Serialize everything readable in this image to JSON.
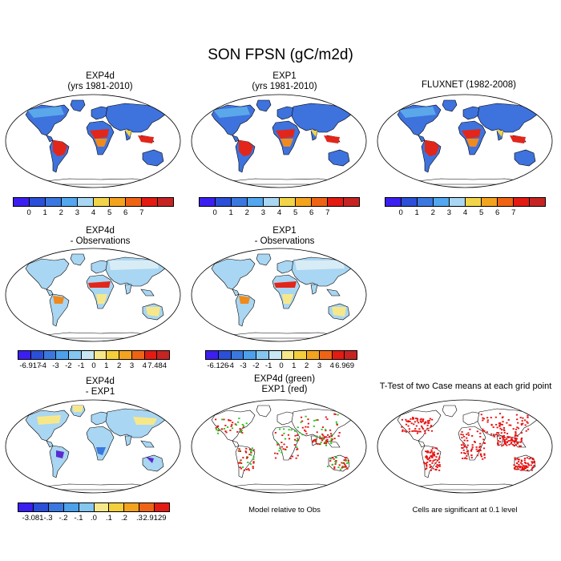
{
  "figure": {
    "title": "SON FPSN (gC/m2d)"
  },
  "panels": {
    "p1": {
      "title_line1": "EXP4d",
      "title_line2": "(yrs 1981-2010)"
    },
    "p2": {
      "title_line1": "EXP1",
      "title_line2": "(yrs 1981-2010)"
    },
    "p3": {
      "title_line1": "FLUXNET (1982-2008)"
    },
    "p4": {
      "title_line1": "EXP4d",
      "title_line2": "- Observations"
    },
    "p5": {
      "title_line1": "EXP1",
      "title_line2": "- Observations"
    },
    "p7": {
      "title_line1": "EXP4d",
      "title_line2": "- EXP1"
    },
    "p8": {
      "title_line1": "EXP4d (green)",
      "title_line2": "EXP1 (red)",
      "note": "Model relative to Obs"
    },
    "p9": {
      "title_line1": "T-Test of two Case means at each grid point",
      "note": "Cells are significant at 0.1 level"
    }
  },
  "colorbars": {
    "abs": {
      "colors": [
        "#3b1ff0",
        "#2b4fd8",
        "#3a78e0",
        "#52a7ee",
        "#a9d6f2",
        "#f2d44a",
        "#f4a31f",
        "#ef6414",
        "#e31b12",
        "#c62422"
      ],
      "labels": [
        "0",
        "1",
        "2",
        "3",
        "4",
        "5",
        "6",
        "7"
      ]
    },
    "diff4": {
      "colors": [
        "#3b1ff0",
        "#2b4fd8",
        "#3a78e0",
        "#4da0ec",
        "#84c6f0",
        "#c9e6f3",
        "#f6e88a",
        "#f4cf3c",
        "#f4a31f",
        "#ef6414",
        "#e31b12",
        "#c62422"
      ],
      "labels": [
        "-6.917",
        "-4",
        "-3",
        "-2",
        "-1",
        "0",
        "1",
        "2",
        "3",
        "4",
        "7.484"
      ]
    },
    "diff1": {
      "colors": [
        "#3b1ff0",
        "#2b4fd8",
        "#3a78e0",
        "#4da0ec",
        "#84c6f0",
        "#c9e6f3",
        "#f6e88a",
        "#f4cf3c",
        "#f4a31f",
        "#ef6414",
        "#e31b12",
        "#c62422"
      ],
      "labels": [
        "-6.126",
        "-4",
        "-3",
        "-2",
        "-1",
        "0",
        "1",
        "2",
        "3",
        "4",
        "6.969"
      ]
    },
    "diff41": {
      "colors": [
        "#3b1ff0",
        "#2b4fd8",
        "#3a78e0",
        "#4da0ec",
        "#84c6f0",
        "#f6e88a",
        "#f4cf3c",
        "#f4a31f",
        "#ef6414",
        "#e31b12"
      ],
      "labels": [
        "-3.081",
        "-.3",
        "-.2",
        "-.1",
        ".0",
        ".1",
        ".2",
        ".3",
        "2.9129"
      ]
    }
  },
  "map_styles": {
    "absolute": {
      "base": "#3e72dd",
      "tropic_hi": "#e3261a",
      "tropic_mid": "#f08a1c",
      "subtrop": "#f2d44a",
      "mid": "#5aa8ea"
    },
    "diff_obs": {
      "base": "#a9d6f2",
      "tropic_hi": "#e3261a",
      "tropic_mid": "#f08a1c",
      "subtrop": "#f6e88a",
      "mid": "#d8ecf6"
    },
    "diff_exp": {
      "base": "#a9d6f2",
      "tropic_hi": "#5a2bd0",
      "tropic_mid": "#3a78e0",
      "subtrop": "#f6e88a",
      "mid": "#c9e6f3"
    },
    "significance": {
      "green": "#22c51a",
      "red": "#e81010"
    }
  }
}
